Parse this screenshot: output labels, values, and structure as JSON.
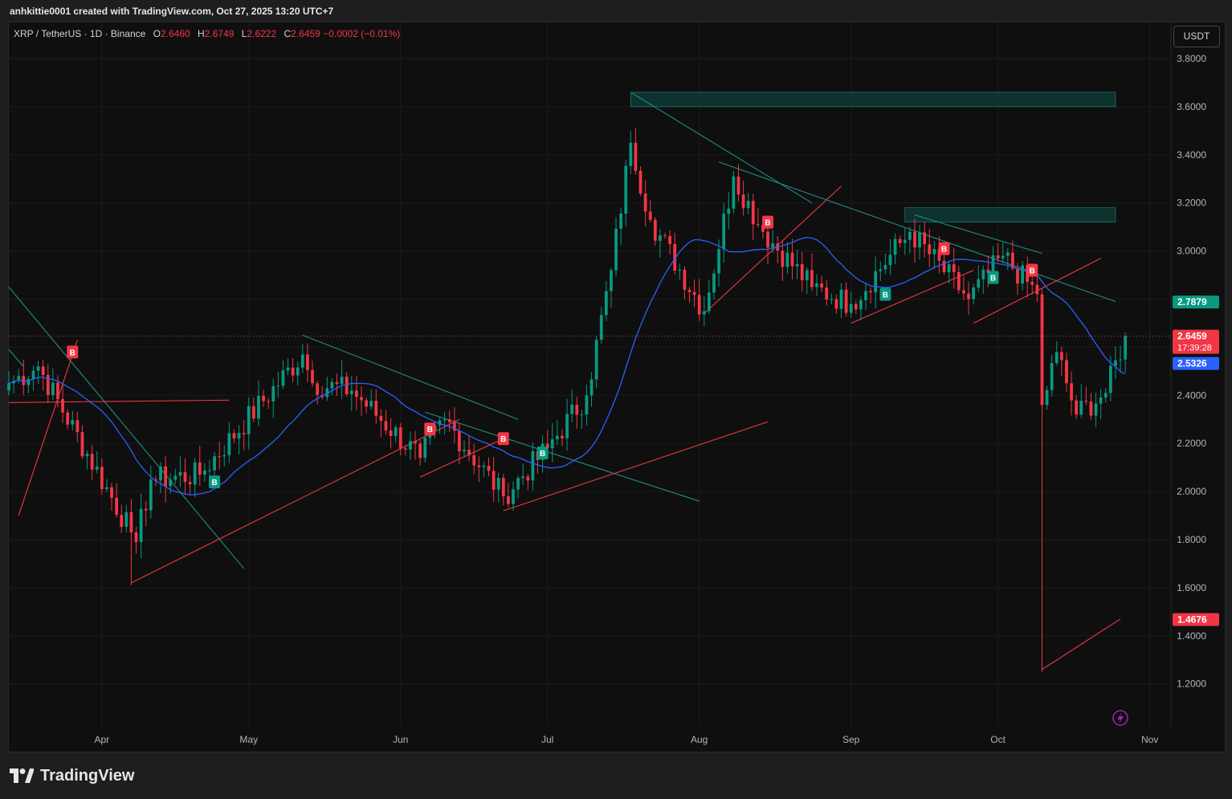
{
  "header": {
    "credit": "anhkittie0001 created with TradingView.com, Oct 27, 2025 13:20 UTC+7"
  },
  "legend": {
    "symbol": "XRP / TetherUS · 1D · Binance",
    "open_label": "O",
    "open": "2.6460",
    "high_label": "H",
    "high": "2.6749",
    "low_label": "L",
    "low": "2.6222",
    "close_label": "C",
    "close": "2.6459",
    "change": "−0.0002 (−0.01%)"
  },
  "currency": "USDT",
  "footer": {
    "brand": "TradingView"
  },
  "colors": {
    "up": "#089981",
    "down": "#f23645",
    "ma": "#2962ff",
    "zone": "#0e3b36",
    "trend_teal": "#1f8f85",
    "trend_red": "#f23645"
  },
  "chart_data": {
    "type": "candlestick",
    "symbol": "XRP/USDT",
    "timeframe": "1D",
    "ylim": [
      1.1,
      3.9
    ],
    "y_ticks": [
      "3.8000",
      "3.6000",
      "3.4000",
      "3.2000",
      "3.0000",
      "2.8000",
      "2.6000",
      "2.4000",
      "2.2000",
      "2.0000",
      "1.8000",
      "1.6000",
      "1.4000",
      "1.2000"
    ],
    "x_ticks": [
      "Apr",
      "May",
      "Jun",
      "Jul",
      "Aug",
      "Sep",
      "Oct",
      "Nov"
    ],
    "x_range": [
      "2025-03-13",
      "2025-11-05"
    ],
    "price_labels": [
      {
        "value": 2.7879,
        "text": "2.7879",
        "color": "#089981"
      },
      {
        "value": 2.6459,
        "text": "2.6459",
        "sub": "17:39:28",
        "color": "#f23645"
      },
      {
        "value": 2.5326,
        "text": "2.5326",
        "color": "#2962ff"
      },
      {
        "value": 1.4676,
        "text": "1.4676",
        "color": "#f23645"
      }
    ],
    "current_price": 2.6459,
    "key_points": [
      {
        "date": "2025-03-13",
        "close": 2.45
      },
      {
        "date": "2025-03-19",
        "close": 2.52
      },
      {
        "date": "2025-04-07",
        "close": 1.83
      },
      {
        "date": "2025-04-08",
        "close": 1.79
      },
      {
        "date": "2025-04-11",
        "close": 2.05
      },
      {
        "date": "2025-04-21",
        "close": 2.07
      },
      {
        "date": "2025-05-12",
        "close": 2.57
      },
      {
        "date": "2025-05-14",
        "close": 2.45
      },
      {
        "date": "2025-05-22",
        "close": 2.42
      },
      {
        "date": "2025-06-05",
        "close": 2.14
      },
      {
        "date": "2025-06-10",
        "close": 2.3
      },
      {
        "date": "2025-06-22",
        "close": 1.98
      },
      {
        "date": "2025-07-01",
        "close": 2.18
      },
      {
        "date": "2025-07-09",
        "close": 2.4
      },
      {
        "date": "2025-07-14",
        "close": 2.92
      },
      {
        "date": "2025-07-18",
        "close": 3.45
      },
      {
        "date": "2025-07-22",
        "close": 3.13
      },
      {
        "date": "2025-08-02",
        "close": 2.75
      },
      {
        "date": "2025-08-08",
        "close": 3.31
      },
      {
        "date": "2025-08-14",
        "close": 3.08
      },
      {
        "date": "2025-08-24",
        "close": 2.85
      },
      {
        "date": "2025-09-01",
        "close": 2.78
      },
      {
        "date": "2025-09-13",
        "close": 3.08
      },
      {
        "date": "2025-09-25",
        "close": 2.8
      },
      {
        "date": "2025-10-02",
        "close": 2.98
      },
      {
        "date": "2025-10-09",
        "close": 2.82
      },
      {
        "date": "2025-10-10",
        "close": 2.36
      },
      {
        "date": "2025-10-13",
        "close": 2.58
      },
      {
        "date": "2025-10-17",
        "close": 2.32
      },
      {
        "date": "2025-10-23",
        "close": 2.41
      },
      {
        "date": "2025-10-27",
        "close": 2.6459
      }
    ],
    "zones": [
      {
        "from": "2025-07-18",
        "to": "2025-10-25",
        "top": 3.66,
        "bottom": 3.6
      },
      {
        "from": "2025-09-12",
        "to": "2025-10-25",
        "top": 3.18,
        "bottom": 3.12
      }
    ],
    "signals": [
      {
        "date": "2025-03-26",
        "type": "B",
        "side": "sell",
        "value": 2.58
      },
      {
        "date": "2025-04-24",
        "type": "B",
        "side": "buy",
        "value": 2.04
      },
      {
        "date": "2025-06-07",
        "type": "B",
        "side": "sell",
        "value": 2.26
      },
      {
        "date": "2025-06-22",
        "type": "B",
        "side": "sell",
        "value": 2.22
      },
      {
        "date": "2025-06-30",
        "type": "B",
        "side": "buy",
        "value": 2.16
      },
      {
        "date": "2025-08-15",
        "type": "B",
        "side": "sell",
        "value": 3.12
      },
      {
        "date": "2025-09-08",
        "type": "B",
        "side": "buy",
        "value": 2.82
      },
      {
        "date": "2025-09-20",
        "type": "B",
        "side": "sell",
        "value": 3.01
      },
      {
        "date": "2025-09-30",
        "type": "B",
        "side": "buy",
        "value": 2.89
      },
      {
        "date": "2025-10-08",
        "type": "B",
        "side": "sell",
        "value": 2.92
      }
    ]
  }
}
